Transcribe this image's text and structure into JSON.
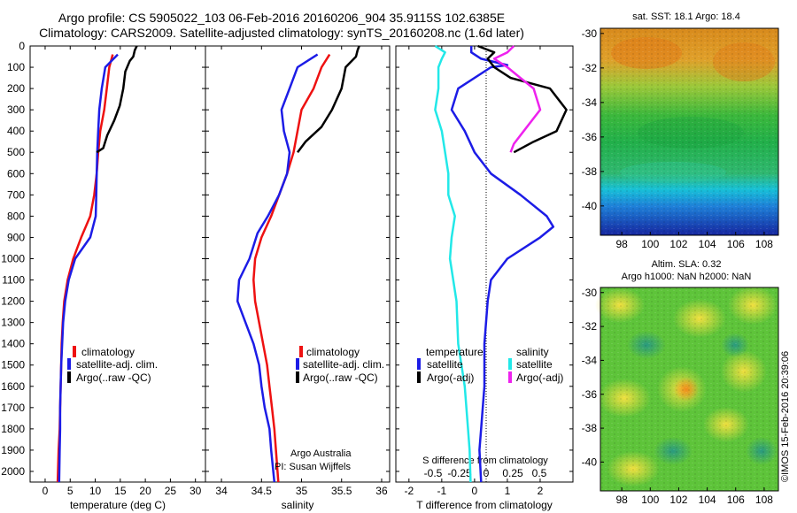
{
  "header": {
    "line1": "Argo profile: CS 5905022_103 06-Feb-2016 20160206_904 35.9115S 102.6385E",
    "line2": "Climatology: CARS2009. Satellite-adjusted climatology: synTS_20160208.nc (1.6d later)"
  },
  "colors": {
    "climatology": "#ee1111",
    "satellite": "#1c1ce6",
    "argo": "#000000",
    "satellite_s": "#22e8e8",
    "argo_s": "#ee22ee"
  },
  "depth_ticks": [
    "0",
    "100",
    "200",
    "300",
    "400",
    "500",
    "600",
    "700",
    "800",
    "900",
    "1000",
    "1100",
    "1200",
    "1300",
    "1400",
    "1500",
    "1600",
    "1700",
    "1800",
    "1900",
    "2000"
  ],
  "temp_panel": {
    "xlabel": "temperature (deg C)",
    "xticks": [
      "0",
      "5",
      "10",
      "15",
      "20",
      "25",
      "30"
    ],
    "legend": [
      "climatology",
      "satellite-adj. clim.",
      "Argo(..raw -QC)"
    ]
  },
  "sal_panel": {
    "xlabel": "salinity",
    "xticks": [
      "34",
      "34.5",
      "35",
      "35.5",
      "36"
    ],
    "legend": [
      "climatology",
      "satellite-adj. clim.",
      "Argo(..raw -QC)"
    ],
    "note1": "Argo Australia",
    "note2": "PI: Susan Wijffels"
  },
  "diff_panel": {
    "xlabel": "T difference from climatology",
    "xticks": [
      "-2",
      "-1",
      "0",
      "1",
      "2"
    ],
    "s_axis_label": "S difference from climatology",
    "s_ticks": [
      "-0.5",
      "-0.25",
      "0",
      "0.25",
      "0.5"
    ],
    "legend_t_title": "temperature",
    "legend_s_title": "salinity",
    "legend_t": [
      "satellite",
      "Argo(-adj)"
    ],
    "legend_s": [
      "satellite",
      "Argo(-adj)"
    ]
  },
  "sst_map": {
    "title": "sat. SST: 18.1  Argo: 18.4",
    "yticks": [
      "-30",
      "-32",
      "-34",
      "-36",
      "-38",
      "-40"
    ],
    "xticks": [
      "98",
      "100",
      "102",
      "104",
      "106",
      "108"
    ]
  },
  "sla_map": {
    "title1": "Altim. SLA: 0.32",
    "title2": "Argo h1000: NaN h2000: NaN",
    "yticks": [
      "-30",
      "-32",
      "-34",
      "-36",
      "-38",
      "-40"
    ],
    "xticks": [
      "98",
      "100",
      "102",
      "104",
      "106",
      "108"
    ]
  },
  "footer_vertical": "©IMOS 15-Feb-2016 20:39:06",
  "chart_data": [
    {
      "type": "line",
      "title": "",
      "xlabel": "temperature (deg C)",
      "ylabel": "",
      "xlim": [
        -3,
        32
      ],
      "ylim": [
        2050,
        0
      ],
      "series": [
        {
          "name": "climatology",
          "points": [
            [
              13.5,
              40
            ],
            [
              12.8,
              100
            ],
            [
              12.3,
              200
            ],
            [
              11.8,
              300
            ],
            [
              11.0,
              400
            ],
            [
              10.6,
              500
            ],
            [
              10.3,
              600
            ],
            [
              9.8,
              700
            ],
            [
              9.0,
              800
            ],
            [
              7.2,
              900
            ],
            [
              5.6,
              1000
            ],
            [
              4.5,
              1100
            ],
            [
              3.8,
              1200
            ],
            [
              3.5,
              1300
            ],
            [
              3.3,
              1400
            ],
            [
              3.2,
              1500
            ],
            [
              3.1,
              1600
            ],
            [
              3.0,
              1700
            ],
            [
              2.9,
              1800
            ],
            [
              2.7,
              1900
            ],
            [
              2.5,
              2050
            ]
          ]
        },
        {
          "name": "satellite-adj. clim.",
          "points": [
            [
              14.5,
              40
            ],
            [
              12.0,
              100
            ],
            [
              11.3,
              200
            ],
            [
              10.8,
              300
            ],
            [
              10.6,
              400
            ],
            [
              10.4,
              500
            ],
            [
              10.3,
              600
            ],
            [
              10.2,
              700
            ],
            [
              10.1,
              800
            ],
            [
              9.0,
              900
            ],
            [
              6.0,
              1000
            ],
            [
              4.7,
              1100
            ],
            [
              4.0,
              1200
            ],
            [
              3.6,
              1300
            ],
            [
              3.4,
              1400
            ],
            [
              3.2,
              1500
            ],
            [
              3.1,
              1600
            ],
            [
              3.0,
              1700
            ],
            [
              3.0,
              1800
            ],
            [
              2.9,
              1900
            ],
            [
              2.8,
              2050
            ]
          ]
        },
        {
          "name": "Argo(..raw -QC)",
          "points": [
            [
              18.3,
              0
            ],
            [
              17.9,
              20
            ],
            [
              17.6,
              50
            ],
            [
              16.9,
              70
            ],
            [
              16.0,
              120
            ],
            [
              15.6,
              200
            ],
            [
              14.9,
              280
            ],
            [
              13.8,
              350
            ],
            [
              12.4,
              420
            ],
            [
              11.6,
              480
            ],
            [
              10.3,
              500
            ]
          ]
        }
      ]
    },
    {
      "type": "line",
      "title": "",
      "xlabel": "salinity",
      "ylabel": "",
      "xlim": [
        33.8,
        36.1
      ],
      "ylim": [
        2050,
        0
      ],
      "series": [
        {
          "name": "climatology",
          "points": [
            [
              35.35,
              40
            ],
            [
              35.25,
              100
            ],
            [
              35.15,
              200
            ],
            [
              35.0,
              300
            ],
            [
              34.95,
              400
            ],
            [
              34.9,
              500
            ],
            [
              34.82,
              600
            ],
            [
              34.72,
              700
            ],
            [
              34.62,
              800
            ],
            [
              34.5,
              900
            ],
            [
              34.42,
              1000
            ],
            [
              34.4,
              1100
            ],
            [
              34.42,
              1200
            ],
            [
              34.47,
              1300
            ],
            [
              34.52,
              1400
            ],
            [
              34.57,
              1500
            ],
            [
              34.6,
              1600
            ],
            [
              34.63,
              1700
            ],
            [
              34.66,
              1800
            ],
            [
              34.68,
              1900
            ],
            [
              34.71,
              2050
            ]
          ]
        },
        {
          "name": "satellite-adj. clim.",
          "points": [
            [
              35.2,
              40
            ],
            [
              34.95,
              100
            ],
            [
              34.85,
              200
            ],
            [
              34.75,
              300
            ],
            [
              34.78,
              400
            ],
            [
              34.85,
              500
            ],
            [
              34.82,
              600
            ],
            [
              34.72,
              700
            ],
            [
              34.58,
              800
            ],
            [
              34.45,
              880
            ],
            [
              34.35,
              1000
            ],
            [
              34.22,
              1100
            ],
            [
              34.2,
              1200
            ],
            [
              34.3,
              1300
            ],
            [
              34.4,
              1400
            ],
            [
              34.47,
              1500
            ],
            [
              34.5,
              1600
            ],
            [
              34.54,
              1700
            ],
            [
              34.6,
              1800
            ],
            [
              34.62,
              1900
            ],
            [
              34.66,
              2050
            ]
          ]
        },
        {
          "name": "Argo(..raw -QC)",
          "points": [
            [
              35.72,
              0
            ],
            [
              35.7,
              20
            ],
            [
              35.68,
              50
            ],
            [
              35.55,
              100
            ],
            [
              35.5,
              200
            ],
            [
              35.38,
              300
            ],
            [
              35.25,
              380
            ],
            [
              35.05,
              450
            ],
            [
              34.95,
              500
            ]
          ]
        }
      ]
    },
    {
      "type": "line",
      "title": "",
      "xlabel": "T difference from climatology",
      "ylabel": "",
      "xlim": [
        -2.4,
        3.0
      ],
      "ylim": [
        2050,
        0
      ],
      "series": [
        {
          "name": "temperature satellite",
          "points": [
            [
              -0.1,
              0
            ],
            [
              -0.1,
              30
            ],
            [
              0.2,
              60
            ],
            [
              1.0,
              90
            ],
            [
              0.5,
              100
            ],
            [
              -0.5,
              200
            ],
            [
              -0.7,
              300
            ],
            [
              -0.3,
              400
            ],
            [
              0,
              500
            ],
            [
              0.5,
              600
            ],
            [
              1.4,
              700
            ],
            [
              2.2,
              800
            ],
            [
              2.4,
              850
            ],
            [
              2.0,
              900
            ],
            [
              1.0,
              1000
            ],
            [
              0.5,
              1100
            ],
            [
              0.4,
              1200
            ],
            [
              0.3,
              1400
            ],
            [
              0.3,
              1600
            ],
            [
              0.2,
              1800
            ],
            [
              0.15,
              1900
            ],
            [
              0.2,
              2050
            ]
          ]
        },
        {
          "name": "temperature Argo(-adj)",
          "points": [
            [
              0.1,
              0
            ],
            [
              0.6,
              30
            ],
            [
              0.4,
              60
            ],
            [
              0.6,
              100
            ],
            [
              1.1,
              150
            ],
            [
              2.3,
              200
            ],
            [
              2.8,
              300
            ],
            [
              2.5,
              400
            ],
            [
              1.8,
              450
            ],
            [
              1.2,
              500
            ]
          ]
        },
        {
          "name": "salinity satellite",
          "points": [
            [
              -1.2,
              0
            ],
            [
              -0.9,
              30
            ],
            [
              -1.0,
              60
            ],
            [
              -1.1,
              100
            ],
            [
              -1.1,
              200
            ],
            [
              -1.2,
              300
            ],
            [
              -1.0,
              400
            ],
            [
              -0.9,
              500
            ],
            [
              -0.8,
              600
            ],
            [
              -0.8,
              700
            ],
            [
              -0.6,
              800
            ],
            [
              -0.7,
              900
            ],
            [
              -0.75,
              1000
            ],
            [
              -0.65,
              1100
            ],
            [
              -0.55,
              1200
            ],
            [
              -0.5,
              1400
            ],
            [
              -0.3,
              1600
            ],
            [
              -0.2,
              1800
            ],
            [
              -0.15,
              1900
            ],
            [
              -0.12,
              2050
            ]
          ]
        },
        {
          "name": "salinity Argo(-adj)",
          "points": [
            [
              1.2,
              0
            ],
            [
              1.0,
              30
            ],
            [
              0.6,
              60
            ],
            [
              1.0,
              100
            ],
            [
              1.4,
              150
            ],
            [
              1.8,
              200
            ],
            [
              2.0,
              300
            ],
            [
              1.5,
              400
            ],
            [
              1.2,
              460
            ],
            [
              1.1,
              500
            ]
          ]
        }
      ]
    },
    {
      "type": "heatmap",
      "title": "sat. SST: 18.1  Argo: 18.4",
      "xlim": [
        96.5,
        109
      ],
      "ylim": [
        -41.7,
        -29.7
      ]
    },
    {
      "type": "heatmap",
      "title": "Altim. SLA: 0.32",
      "xlim": [
        96.5,
        109
      ],
      "ylim": [
        -41.7,
        -29.7
      ]
    }
  ]
}
